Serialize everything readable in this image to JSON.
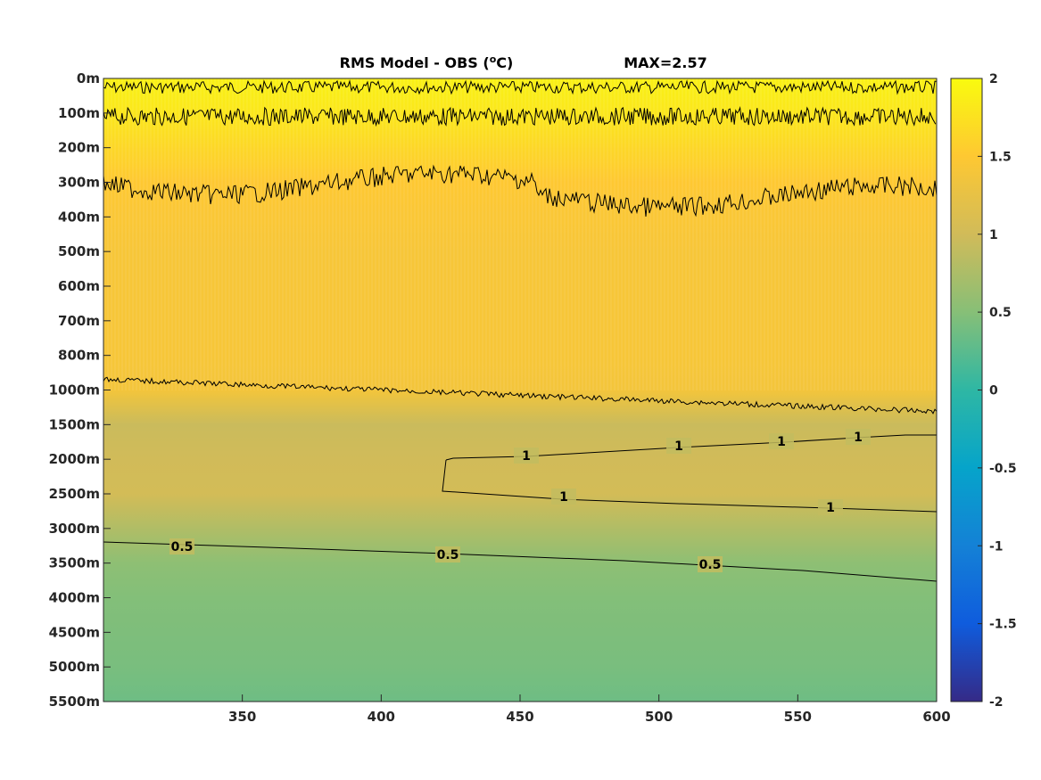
{
  "chart_data": {
    "type": "heatmap",
    "title_left": "RMS Model - OBS (",
    "title_unit_sup": "o",
    "title_unit_after": "C)",
    "title_right": "MAX=2.57",
    "xlim": [
      300,
      600
    ],
    "x_ticks": [
      350,
      400,
      450,
      500,
      550,
      600
    ],
    "y_tick_labels": [
      "0m",
      "100m",
      "200m",
      "300m",
      "400m",
      "500m",
      "600m",
      "700m",
      "800m",
      "1000m",
      "1500m",
      "2000m",
      "2500m",
      "3000m",
      "3500m",
      "4000m",
      "4500m",
      "5000m",
      "5500m"
    ],
    "colorbar": {
      "range": [
        -2,
        2
      ],
      "ticks": [
        "2",
        "1.5",
        "1",
        "0.5",
        "0",
        "-0.5",
        "-1",
        "-1.5",
        "-2"
      ],
      "colormap": "parula"
    },
    "rms_profile": {
      "depth_labels": [
        "0m",
        "100m",
        "200m",
        "300m",
        "400m",
        "500m",
        "600m",
        "700m",
        "800m",
        "1000m",
        "1500m",
        "2000m",
        "2500m",
        "3000m",
        "3500m",
        "4000m",
        "4500m",
        "5000m",
        "5500m"
      ],
      "values": [
        1.9,
        1.8,
        1.65,
        1.5,
        1.45,
        1.42,
        1.42,
        1.42,
        1.42,
        1.38,
        0.95,
        1.0,
        1.02,
        0.78,
        0.55,
        0.48,
        0.45,
        0.42,
        0.36
      ]
    },
    "contours": [
      {
        "level": "0.5",
        "label_x": [
          330,
          420,
          515
        ]
      },
      {
        "level": "1",
        "label_x": [
          467,
          508,
          545,
          572,
          597,
          566
        ]
      }
    ],
    "colors": {
      "parula": [
        "#352a87",
        "#0f5cdd",
        "#1481d6",
        "#06a4ca",
        "#2eb7a4",
        "#87bf77",
        "#d1bb59",
        "#fec832",
        "#f9fb0e"
      ]
    }
  }
}
